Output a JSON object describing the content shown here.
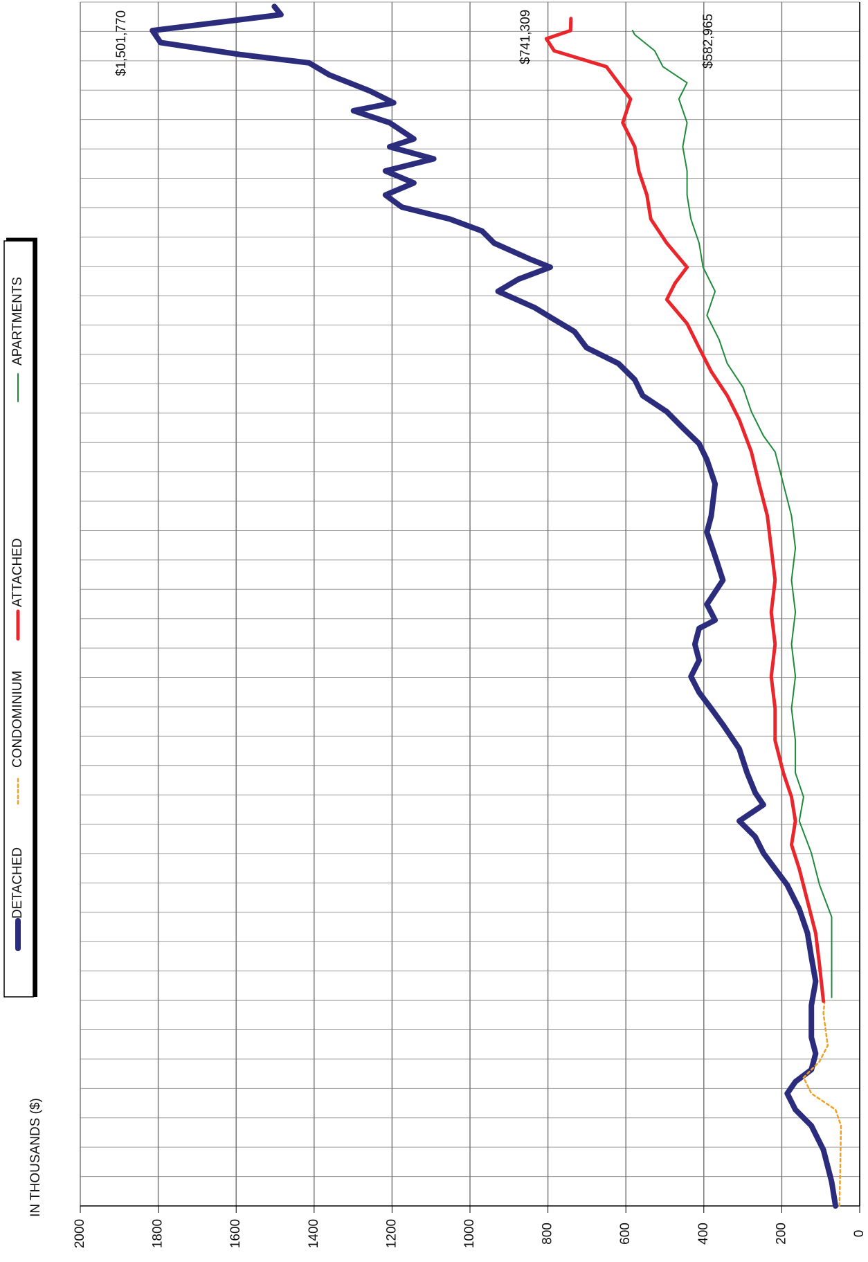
{
  "chart_data": {
    "type": "line",
    "y_label": "IN THOUSANDS ($)",
    "ylim": [
      0,
      2000
    ],
    "yticks": [
      0,
      200,
      400,
      600,
      800,
      1000,
      1200,
      1400,
      1600,
      1800,
      2000
    ],
    "xlim": [
      0,
      41
    ],
    "xticks": [
      0,
      1,
      2,
      3,
      4,
      5,
      6,
      7,
      8,
      9,
      10,
      11,
      12,
      13,
      14,
      15,
      16,
      17,
      18,
      19,
      20,
      21,
      22,
      23,
      24,
      25,
      26,
      27,
      28,
      29,
      30,
      31,
      32,
      33,
      34,
      35,
      36,
      37,
      38,
      39,
      40,
      41
    ],
    "grid": true,
    "legend": "left",
    "series": [
      {
        "name": "DETACHED",
        "color": "#2b2c7c",
        "x": [
          0,
          0.82,
          1.91,
          2.73,
          3.28,
          3.83,
          4.23,
          4.64,
          5.19,
          5.74,
          6.83,
          7.65,
          8.47,
          9.29,
          10.11,
          10.93,
          11.48,
          12.02,
          12.57,
          13.11,
          13.66,
          14.07,
          14.75,
          15.57,
          16.39,
          16.94,
          17.49,
          18.03,
          18.58,
          19.13,
          19.67,
          19.95,
          20.49,
          21.31,
          22.13,
          22.95,
          23.5,
          24.59,
          25.41,
          25.96,
          26.5,
          27.05,
          27.6,
          28.14,
          28.69,
          29.23,
          29.78,
          30.19,
          30.6,
          31.15,
          31.56,
          31.97,
          32.24,
          32.79,
          33.2,
          33.61,
          34.02,
          34.43,
          34.84,
          35.25,
          35.66,
          36.07,
          36.34,
          36.89,
          37.3,
          37.57,
          37.98,
          38.52,
          38.93,
          39.21,
          39.62,
          40.03,
          40.57,
          40.85
        ],
        "values": [
          62,
          72,
          93,
          124,
          165,
          186,
          165,
          124,
          113,
          124,
          124,
          113,
          124,
          134,
          155,
          186,
          217,
          247,
          268,
          309,
          247,
          268,
          289,
          309,
          351,
          381,
          412,
          433,
          412,
          423,
          412,
          371,
          392,
          351,
          371,
          392,
          381,
          371,
          392,
          412,
          454,
          495,
          557,
          577,
          619,
          701,
          732,
          784,
          835,
          928,
          876,
          794,
          845,
          938,
          969,
          1052,
          1175,
          1217,
          1144,
          1217,
          1093,
          1206,
          1144,
          1206,
          1299,
          1196,
          1258,
          1361,
          1413,
          1588,
          1794,
          1815,
          1485,
          1502
        ]
      },
      {
        "name": "CONDOMINIUM",
        "color": "#f0a024",
        "x": [
          0,
          1.09,
          2.73,
          3.28,
          3.83,
          4.37,
          4.92,
          5.46,
          6.56,
          6.97
        ],
        "values": [
          52,
          50,
          48,
          62,
          124,
          144,
          103,
          82,
          93,
          90
        ]
      },
      {
        "name": "ATTACHED",
        "color": "#e8262b",
        "x": [
          6.97,
          8.2,
          9.29,
          10.38,
          11.48,
          12.3,
          13.11,
          13.93,
          14.75,
          15.85,
          16.94,
          18.03,
          19.13,
          20.22,
          21.31,
          22.4,
          23.5,
          24.59,
          25.68,
          26.78,
          27.6,
          28.42,
          29.23,
          30.05,
          30.87,
          31.42,
          31.97,
          32.79,
          33.61,
          34.43,
          35.25,
          36.07,
          36.89,
          37.7,
          38.25,
          38.8,
          39.34,
          39.75,
          40.03,
          40.44
        ],
        "values": [
          93,
          103,
          113,
          134,
          155,
          175,
          165,
          175,
          196,
          217,
          217,
          227,
          217,
          227,
          217,
          227,
          237,
          258,
          278,
          309,
          340,
          381,
          412,
          443,
          495,
          474,
          443,
          495,
          536,
          546,
          567,
          577,
          608,
          588,
          619,
          650,
          784,
          804,
          742,
          741
        ]
      },
      {
        "name": "APARTMENTS",
        "color": "#1f8a3b",
        "x": [
          7.1,
          8.2,
          9.84,
          10.93,
          12.02,
          13.11,
          13.93,
          14.75,
          15.85,
          16.94,
          18.03,
          19.13,
          20.22,
          21.31,
          22.4,
          23.5,
          24.59,
          25.68,
          26.23,
          27.05,
          27.87,
          28.69,
          29.51,
          30.33,
          31.15,
          31.97,
          32.79,
          33.61,
          34.43,
          35.25,
          36.07,
          36.89,
          37.7,
          38.25,
          38.8,
          39.34,
          39.89,
          40.03
        ],
        "values": [
          72,
          72,
          72,
          103,
          124,
          155,
          144,
          165,
          165,
          175,
          165,
          175,
          165,
          175,
          165,
          175,
          196,
          217,
          247,
          278,
          299,
          340,
          361,
          392,
          371,
          402,
          412,
          433,
          443,
          443,
          454,
          443,
          464,
          443,
          505,
          526,
          577,
          583
        ]
      }
    ],
    "annotations": [
      "$1,501,770",
      "$741,309",
      "$582,965"
    ]
  }
}
